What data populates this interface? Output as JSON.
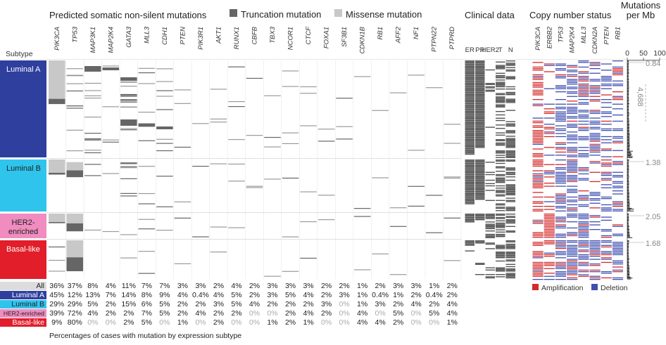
{
  "chart_data": {
    "type": "heatmap",
    "title": "Predicted somatic non-silent mutations",
    "legend": {
      "truncation": "Truncation mutation",
      "missense": "Missense mutation",
      "amplification": "Amplification",
      "deletion": "Deletion"
    },
    "colors": {
      "truncation": "#666666",
      "missense": "#c8c8c8",
      "amplification": "#d42a2a",
      "deletion": "#3f4fb0",
      "clinical_fill": "#555555"
    },
    "subtype_header": "Subtype",
    "subtypes": [
      {
        "name": "Luminal A",
        "color": "#2f3f9e",
        "text_color": "#ffffff",
        "median_mut_per_mb": "0.84"
      },
      {
        "name": "Luminal B",
        "color": "#2fc4ec",
        "text_color": "#222222",
        "median_mut_per_mb": "1.38"
      },
      {
        "name": "HER2-\nenriched",
        "color": "#f08cc0",
        "text_color": "#222222",
        "median_mut_per_mb": "2.05"
      },
      {
        "name": "Basal-like",
        "color": "#e11e2a",
        "text_color": "#ffffff",
        "median_mut_per_mb": "1.68"
      }
    ],
    "mutated_genes": [
      "PIK3CA",
      "TP53",
      "MAP3K1",
      "MAP2K4",
      "GATA3",
      "MLL3",
      "CDH1",
      "PTEN",
      "PIK3R1",
      "AKT1",
      "RUNX1",
      "CBFB",
      "TBX3",
      "NCOR1",
      "CTCF",
      "FOXA1",
      "SF3B1",
      "CDKN1B",
      "RB1",
      "AFF2",
      "NF1",
      "PTPN22",
      "PTPRD"
    ],
    "clinical_section": "Clinical data",
    "clinical_columns": [
      "ER",
      "PR",
      "HER2",
      "T",
      "N"
    ],
    "cn_section": "Copy number status",
    "cn_genes": [
      "PIK3CA",
      "ERBB2",
      "TP53",
      "MAP2K4",
      "MLL3",
      "CDKN2A",
      "PTEN",
      "RB1"
    ],
    "mut_rate_section": "Mutations per Mb",
    "mut_rate_axis_ticks": [
      "0",
      "50",
      "100"
    ],
    "mut_rate_xlim": [
      0,
      100
    ],
    "outlier_label": "4,688",
    "percent_rows": [
      {
        "label": "All",
        "values": [
          "36%",
          "37%",
          "8%",
          "4%",
          "11%",
          "7%",
          "7%",
          "3%",
          "3%",
          "2%",
          "4%",
          "2%",
          "3%",
          "3%",
          "3%",
          "2%",
          "2%",
          "1%",
          "2%",
          "3%",
          "3%",
          "1%",
          "2%"
        ]
      },
      {
        "label": "Luminal A",
        "values": [
          "45%",
          "12%",
          "13%",
          "7%",
          "14%",
          "8%",
          "9%",
          "4%",
          "0.4%",
          "4%",
          "5%",
          "2%",
          "3%",
          "5%",
          "4%",
          "2%",
          "3%",
          "1%",
          "0.4%",
          "1%",
          "2%",
          "0.4%",
          "2%"
        ]
      },
      {
        "label": "Luminal B",
        "values": [
          "29%",
          "29%",
          "5%",
          "2%",
          "15%",
          "6%",
          "5%",
          "2%",
          "2%",
          "3%",
          "5%",
          "4%",
          "2%",
          "2%",
          "2%",
          "3%",
          "0%",
          "1%",
          "3%",
          "2%",
          "4%",
          "2%",
          "4%"
        ]
      },
      {
        "label": "HER2-enriched",
        "values": [
          "39%",
          "72%",
          "4%",
          "2%",
          "2%",
          "7%",
          "5%",
          "2%",
          "4%",
          "2%",
          "2%",
          "0%",
          "0%",
          "2%",
          "4%",
          "2%",
          "0%",
          "4%",
          "0%",
          "5%",
          "0%",
          "5%",
          "4%"
        ]
      },
      {
        "label": "Basal-like",
        "values": [
          "9%",
          "80%",
          "0%",
          "0%",
          "2%",
          "5%",
          "0%",
          "1%",
          "0%",
          "2%",
          "0%",
          "0%",
          "1%",
          "2%",
          "1%",
          "0%",
          "0%",
          "4%",
          "4%",
          "2%",
          "0%",
          "0%",
          "1%"
        ]
      }
    ],
    "footnote": "Percentages of cases with mutation by expression subtype"
  }
}
